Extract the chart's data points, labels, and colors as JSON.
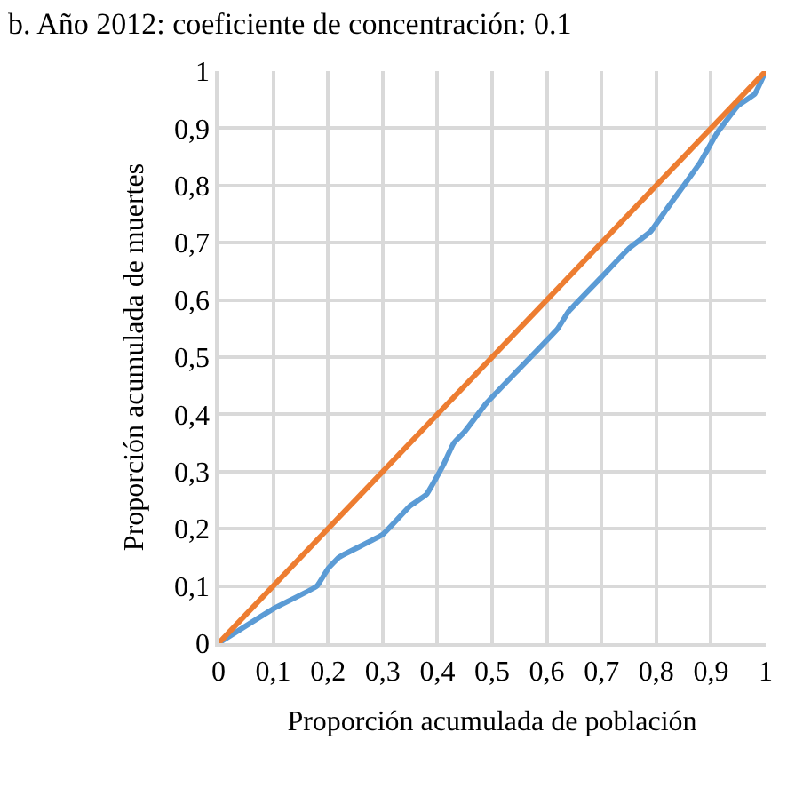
{
  "chart_data": {
    "type": "line",
    "title": "b. Año 2012: coeficiente de concentración: 0.1",
    "xlabel": "Proporción acumulada de población",
    "ylabel": "Proporción acumulada de muertes",
    "series": [
      {
        "color": "#5b9bd5",
        "x": [
          0,
          0.1,
          0.18,
          0.2,
          0.22,
          0.3,
          0.35,
          0.38,
          0.41,
          0.43,
          0.45,
          0.49,
          0.55,
          0.62,
          0.64,
          0.7,
          0.75,
          0.79,
          0.82,
          0.88,
          0.91,
          0.95,
          0.98,
          1
        ],
        "values": [
          0,
          0.06,
          0.1,
          0.13,
          0.15,
          0.19,
          0.24,
          0.26,
          0.31,
          0.35,
          0.37,
          0.42,
          0.48,
          0.55,
          0.58,
          0.64,
          0.69,
          0.72,
          0.76,
          0.84,
          0.89,
          0.94,
          0.96,
          1
        ]
      },
      {
        "color": "#ed7d31",
        "x": [
          0,
          1
        ],
        "values": [
          0,
          1
        ]
      }
    ],
    "xlim": [
      0,
      1
    ],
    "ylim": [
      0,
      1
    ],
    "xticks": [
      0,
      {
        "value": 0.1,
        "label": "0,1"
      },
      {
        "value": 0.2,
        "label": "0,2"
      },
      {
        "value": 0.3,
        "label": "0,3"
      },
      {
        "value": 0.4,
        "label": "0,4"
      },
      {
        "value": 0.5,
        "label": "0,5"
      },
      {
        "value": 0.6,
        "label": "0,6"
      },
      {
        "value": 0.7,
        "label": "0,7"
      },
      {
        "value": 0.8,
        "label": "0,8"
      },
      {
        "value": 0.9,
        "label": "0,9"
      },
      1
    ],
    "yticks": [
      0,
      {
        "value": 0.1,
        "label": "0,1"
      },
      {
        "value": 0.2,
        "label": "0,2"
      },
      {
        "value": 0.3,
        "label": "0,3"
      },
      {
        "value": 0.4,
        "label": "0,4"
      },
      {
        "value": 0.5,
        "label": "0,5"
      },
      {
        "value": 0.6,
        "label": "0,6"
      },
      {
        "value": 0.7,
        "label": "0,7"
      },
      {
        "value": 0.8,
        "label": "0,8"
      },
      {
        "value": 0.9,
        "label": "0,9"
      },
      1
    ],
    "grid": true,
    "marker": "none",
    "line_style": "solid"
  }
}
